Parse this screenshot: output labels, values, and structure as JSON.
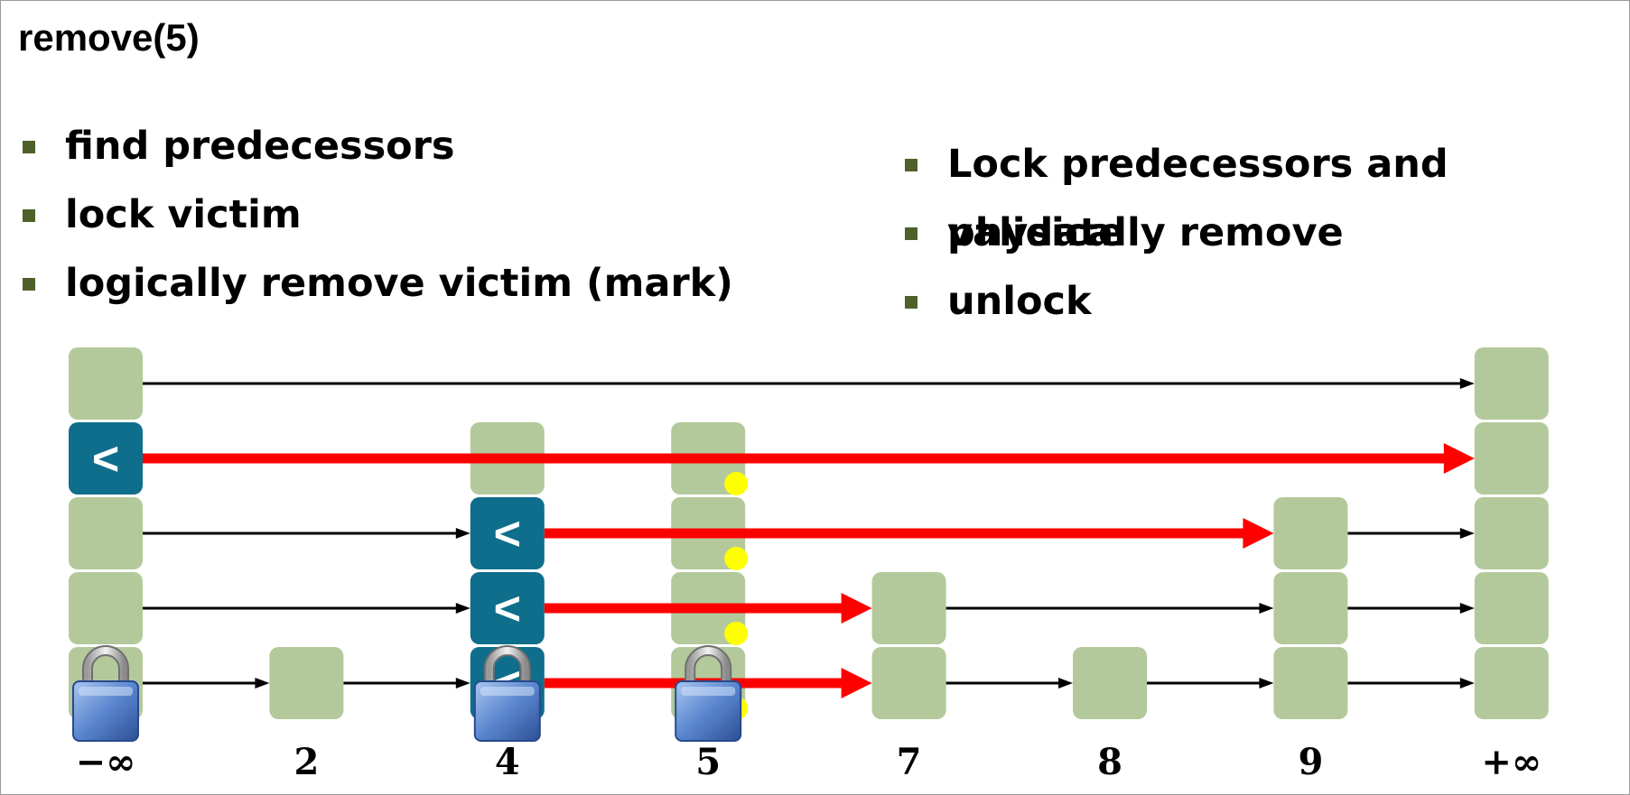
{
  "title": "remove(5)",
  "bullets_left": [
    "find predecessors",
    "lock victim",
    "logically remove victim (mark)"
  ],
  "bullets_right": [
    "Lock predecessors and validate",
    "physically remove",
    "unlock"
  ],
  "keys": [
    "−∞",
    "2",
    "4",
    "5",
    "7",
    "8",
    "9",
    "+∞"
  ],
  "node_levels": [
    5,
    1,
    4,
    4,
    2,
    1,
    3,
    5
  ],
  "locked_nodes": [
    0,
    2,
    3
  ],
  "marked_node": 3,
  "pred_node_label": "<",
  "pred_cells": [
    [
      0,
      3
    ],
    [
      2,
      2
    ],
    [
      2,
      1
    ],
    [
      2,
      0
    ]
  ],
  "red_links": [
    {
      "level": 3,
      "from": 0,
      "to": 7
    },
    {
      "level": 2,
      "from": 2,
      "to": 6
    },
    {
      "level": 1,
      "from": 2,
      "to": 4
    },
    {
      "level": 0,
      "from": 2,
      "to": 4
    }
  ],
  "colors": {
    "node": "#b3c99b",
    "predecessor": "#0e6e8c",
    "red_link": "#ff0000",
    "black_link": "#000000",
    "mark": "#ffff00",
    "bullet": "#4f6128"
  },
  "icons": {
    "lock": "padlock-icon",
    "mark": "mark-dot-icon"
  }
}
